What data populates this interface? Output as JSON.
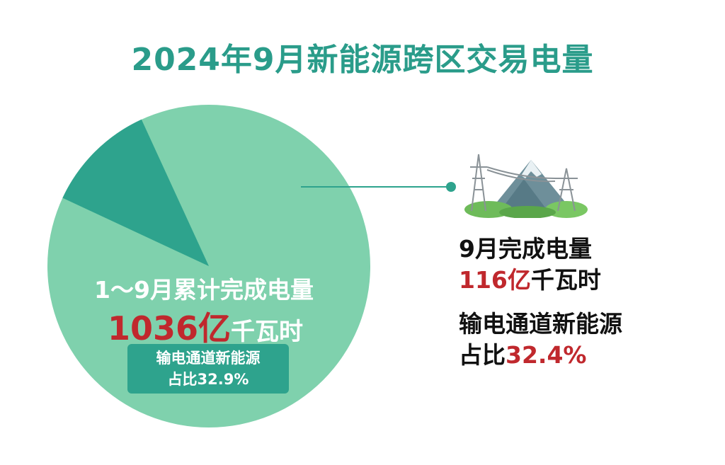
{
  "title": "2024年9月新能源跨区交易电量",
  "colors": {
    "title": "#2a9c8a",
    "pie_main": "#7fd1ad",
    "pie_slice": "#2ea38d",
    "highlight": "#c0282d"
  },
  "pie": {
    "label": "1～9月累计完成电量",
    "total_value": "1036亿",
    "total_unit": "千瓦时",
    "share_line1": "输电通道新能源",
    "share_line2": "占比32.9%"
  },
  "september": {
    "label": "9月完成电量",
    "value": "116亿",
    "unit": "千瓦时",
    "share_line1": "输电通道新能源",
    "share_prefix": "占比",
    "share_value": "32.4%"
  },
  "chart_data": {
    "type": "pie",
    "title": "2024年9月新能源跨区交易电量",
    "unit": "亿千瓦时",
    "slices": [
      {
        "name": "9月完成电量",
        "value": 116
      },
      {
        "name": "",
        "value": 920
      }
    ],
    "total": {
      "name": "1～9月累计完成电量",
      "value": 1036
    },
    "annotations": [
      "输电通道新能源占比32.9%",
      "输电通道新能源占比32.4%"
    ]
  },
  "illustration_icon": "power-tower-mountain-icon"
}
